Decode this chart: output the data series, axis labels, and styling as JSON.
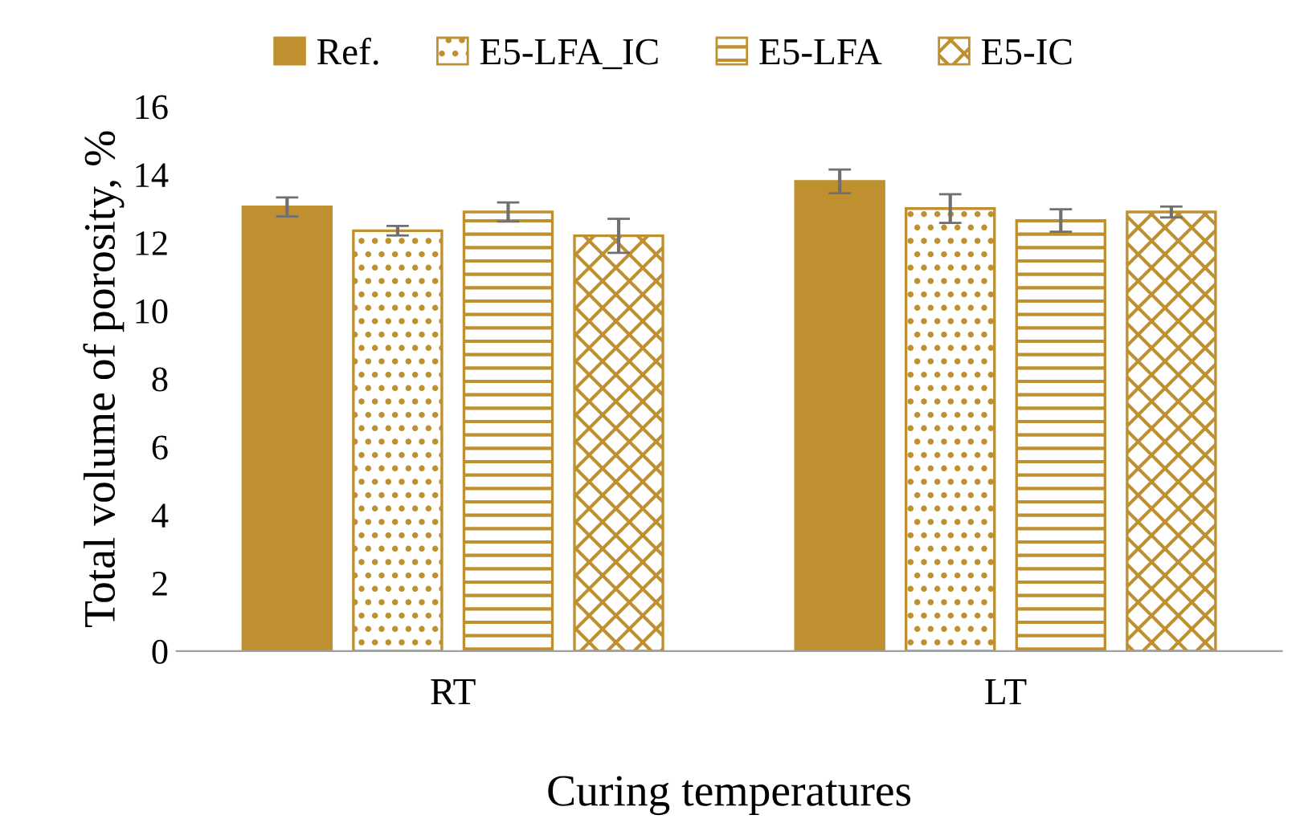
{
  "chart_data": {
    "type": "bar",
    "xlabel": "Curing temperatures",
    "ylabel": "Total volume of porosity, %",
    "categories": [
      "RT",
      "LT"
    ],
    "series": [
      {
        "name": "Ref.",
        "color": "#bf9030",
        "values": [
          13.05,
          13.8
        ],
        "errors": [
          0.28,
          0.35
        ]
      },
      {
        "name": "E5-LFA_IC",
        "color": "#bf9030",
        "values": [
          12.35,
          13.0
        ],
        "errors": [
          0.14,
          0.42
        ]
      },
      {
        "name": "E5-LFA",
        "color": "#bf9030",
        "values": [
          12.9,
          12.65
        ],
        "errors": [
          0.28,
          0.33
        ]
      },
      {
        "name": "E5-IC",
        "color": "#bf9030",
        "values": [
          12.2,
          12.9
        ],
        "errors": [
          0.5,
          0.16
        ]
      }
    ],
    "ylim": [
      0,
      16
    ],
    "yticks": [
      0,
      2,
      4,
      6,
      8,
      10,
      12,
      14,
      16
    ],
    "grid": false,
    "legend": "top"
  }
}
